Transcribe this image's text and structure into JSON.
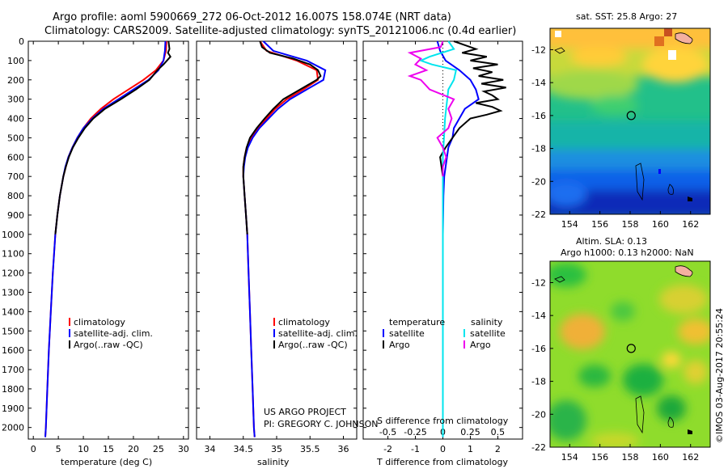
{
  "header": {
    "line1": "Argo profile: aoml 5900669_272 06-Oct-2012 16.007S 158.074E (NRT data)",
    "line2": "Climatology: CARS2009. Satellite-adjusted climatology: synTS_20121006.nc (0.4d earlier)"
  },
  "footer": {
    "project": "US ARGO PROJECT",
    "pi": "PI: GREGORY C. JOHNSON",
    "timestamp": "©IMOS 03-Aug-2017 20:55:24"
  },
  "colors": {
    "climatology": "#ff0000",
    "satellite": "#0000ff",
    "argo": "#000000",
    "salinity_satellite": "#00e5ee",
    "salinity_argo": "#ee00ee"
  },
  "chart_data": [
    {
      "type": "line",
      "name": "temperature-profile",
      "xlabel": "temperature (deg C)",
      "ylabel": "",
      "xlim": [
        -1,
        31
      ],
      "ylim": [
        2060,
        0
      ],
      "xticks": [
        0,
        5,
        10,
        15,
        20,
        25,
        30
      ],
      "yticks": [
        0,
        100,
        200,
        300,
        400,
        500,
        600,
        700,
        800,
        900,
        1000,
        1100,
        1200,
        1300,
        1400,
        1500,
        1600,
        1700,
        1800,
        1900,
        2000
      ],
      "legend": [
        "climatology",
        "satellite-adj. clim.",
        "Argo(..raw -QC)"
      ],
      "legend_location": "lower-center",
      "series": [
        {
          "name": "climatology",
          "color": "#ff0000",
          "depth": [
            0,
            50,
            100,
            150,
            200,
            250,
            300,
            350,
            400,
            450,
            500,
            550,
            600,
            650,
            700,
            800,
            900,
            1000,
            1200,
            1400,
            1600,
            1800,
            2000,
            2050
          ],
          "values": [
            26.6,
            26.5,
            26.0,
            24.5,
            22.0,
            19.0,
            16.0,
            13.5,
            11.5,
            10.0,
            8.8,
            7.8,
            7.0,
            6.5,
            6.0,
            5.3,
            4.8,
            4.4,
            3.9,
            3.5,
            3.1,
            2.8,
            2.5,
            2.4
          ]
        },
        {
          "name": "satellite-adj. clim.",
          "color": "#0000ff",
          "depth": [
            0,
            50,
            100,
            150,
            200,
            250,
            300,
            350,
            400,
            450,
            500,
            550,
            600,
            650,
            700,
            800,
            900,
            1000,
            1200,
            1400,
            1600,
            1800,
            2000,
            2050
          ],
          "values": [
            26.4,
            26.3,
            26.0,
            25.0,
            23.0,
            20.0,
            17.0,
            14.0,
            11.8,
            10.0,
            8.8,
            7.8,
            7.0,
            6.4,
            6.0,
            5.3,
            4.8,
            4.4,
            3.9,
            3.5,
            3.1,
            2.8,
            2.5,
            2.4
          ]
        },
        {
          "name": "Argo(..raw -QC)",
          "color": "#000000",
          "depth": [
            0,
            20,
            40,
            60,
            80,
            100,
            120,
            150,
            200,
            250,
            300,
            350,
            400,
            450,
            500,
            550,
            600,
            650,
            700,
            800,
            900,
            1000
          ],
          "values": [
            27.0,
            27.1,
            27.2,
            26.9,
            27.4,
            26.7,
            26.0,
            24.8,
            23.2,
            20.5,
            17.5,
            14.3,
            12.0,
            10.3,
            9.0,
            7.9,
            7.1,
            6.5,
            6.0,
            5.3,
            4.8,
            4.4
          ]
        }
      ]
    },
    {
      "type": "line",
      "name": "salinity-profile",
      "xlabel": "salinity",
      "xlim": [
        33.8,
        36.2
      ],
      "ylim": [
        2060,
        0
      ],
      "xticks": [
        34,
        34.5,
        35,
        35.5,
        36
      ],
      "xticklabels": [
        "34",
        "34.5",
        "35",
        "35.5",
        "36"
      ],
      "legend": [
        "climatology",
        "satellite-adj. clim.",
        "Argo(..raw -QC)"
      ],
      "legend_location": "lower-center",
      "series": [
        {
          "name": "climatology",
          "color": "#ff0000",
          "depth": [
            0,
            50,
            100,
            150,
            200,
            250,
            300,
            350,
            400,
            450,
            500,
            550,
            600,
            650,
            700,
            800,
            900,
            1000,
            1200,
            1400,
            1600,
            1800,
            2000,
            2050
          ],
          "values": [
            34.75,
            34.85,
            35.3,
            35.6,
            35.62,
            35.4,
            35.15,
            34.98,
            34.85,
            34.72,
            34.62,
            34.55,
            34.52,
            34.5,
            34.5,
            34.52,
            34.54,
            34.56,
            34.58,
            34.6,
            34.62,
            34.64,
            34.66,
            34.67
          ]
        },
        {
          "name": "satellite-adj. clim.",
          "color": "#0000ff",
          "depth": [
            0,
            50,
            100,
            150,
            200,
            250,
            300,
            350,
            400,
            450,
            500,
            550,
            600,
            650,
            700,
            800,
            900,
            1000,
            1200,
            1400,
            1600,
            1800,
            2000,
            2050
          ],
          "values": [
            34.8,
            34.95,
            35.45,
            35.73,
            35.7,
            35.45,
            35.2,
            35.02,
            34.88,
            34.74,
            34.64,
            34.57,
            34.53,
            34.51,
            34.5,
            34.52,
            34.54,
            34.56,
            34.58,
            34.6,
            34.62,
            34.64,
            34.66,
            34.67
          ]
        },
        {
          "name": "Argo(..raw -QC)",
          "color": "#000000",
          "depth": [
            0,
            30,
            60,
            90,
            120,
            150,
            180,
            200,
            250,
            300,
            350,
            400,
            450,
            500,
            550,
            600,
            650,
            700,
            800,
            900,
            1000
          ],
          "values": [
            34.75,
            34.78,
            34.9,
            35.25,
            35.5,
            35.62,
            35.66,
            35.6,
            35.35,
            35.1,
            34.95,
            34.82,
            34.7,
            34.6,
            34.55,
            34.52,
            34.5,
            34.5,
            34.52,
            34.54,
            34.56
          ]
        }
      ]
    },
    {
      "type": "line",
      "name": "difference-profile",
      "xlabel": "T difference from climatology",
      "xlabel2": "S difference from climatology",
      "xlim": [
        -2.9,
        2.9
      ],
      "ylim": [
        2060,
        0
      ],
      "xticks": [
        -2,
        -1,
        0,
        1,
        2
      ],
      "xticklabels": [
        "-2",
        "-1",
        "0",
        "1",
        "2"
      ],
      "sticks": [
        -0.5,
        -0.25,
        0,
        0.25,
        0.5
      ],
      "sticklabels": [
        "-0.5",
        "-0.25",
        "0",
        "0.25",
        "0.5"
      ],
      "legend_headers": [
        "temperature",
        "salinity"
      ],
      "legend": [
        "satellite",
        "Argo",
        "satellite",
        "Argo"
      ],
      "legend_location": "lower-center",
      "series": [
        {
          "name": "T satellite",
          "color": "#0000ff",
          "unit": "T",
          "depth": [
            0,
            50,
            100,
            150,
            200,
            250,
            300,
            350,
            400,
            450,
            500,
            550,
            600,
            650,
            700,
            800,
            1000,
            1500,
            2050
          ],
          "values": [
            -0.2,
            -0.1,
            0.1,
            0.6,
            1.0,
            1.2,
            1.3,
            0.8,
            0.6,
            0.4,
            0.35,
            0.2,
            0.15,
            0.1,
            0.05,
            0.02,
            0.0,
            0.0,
            0.0
          ]
        },
        {
          "name": "T Argo",
          "color": "#000000",
          "unit": "T",
          "depth": [
            0,
            20,
            40,
            60,
            80,
            100,
            120,
            140,
            160,
            180,
            200,
            220,
            240,
            260,
            280,
            300,
            320,
            340,
            360,
            380,
            400,
            450,
            500,
            550,
            600,
            650,
            700
          ],
          "values": [
            0.4,
            0.8,
            1.2,
            0.7,
            1.6,
            1.0,
            2.0,
            1.1,
            1.8,
            1.3,
            2.2,
            1.4,
            2.3,
            1.5,
            1.8,
            2.0,
            1.2,
            1.8,
            2.1,
            1.6,
            1.0,
            0.6,
            0.35,
            0.1,
            -0.1,
            -0.05,
            0.0
          ]
        },
        {
          "name": "S satellite",
          "color": "#00e5ee",
          "unit": "S",
          "depth": [
            0,
            40,
            80,
            100,
            120,
            150,
            200,
            250,
            300,
            400,
            500,
            600,
            700,
            800,
            1000,
            1500,
            2050
          ],
          "values": [
            0.05,
            0.1,
            -0.12,
            -0.2,
            -0.1,
            0.12,
            0.1,
            0.05,
            0.04,
            0.02,
            0.01,
            0.0,
            0.0,
            0.0,
            0.0,
            0.0,
            0.0
          ]
        },
        {
          "name": "S Argo",
          "color": "#ee00ee",
          "unit": "S",
          "depth": [
            0,
            30,
            60,
            90,
            120,
            150,
            180,
            200,
            250,
            300,
            350,
            400,
            450,
            500,
            550,
            600,
            650,
            700
          ],
          "values": [
            0.0,
            -0.02,
            -0.3,
            -0.2,
            -0.25,
            -0.15,
            -0.3,
            -0.2,
            -0.12,
            0.1,
            0.05,
            0.08,
            0.05,
            -0.05,
            0.0,
            0.03,
            0.0,
            0.0
          ]
        }
      ]
    },
    {
      "type": "heatmap",
      "name": "sst-map",
      "title": "sat. SST: 25.8  Argo: 27",
      "xticks": [
        154,
        156,
        158,
        160,
        162
      ],
      "yticks": [
        -12,
        -14,
        -16,
        -18,
        -20,
        -22
      ],
      "xlim": [
        152.7,
        163.3
      ],
      "ylim": [
        -22,
        -10.7
      ],
      "marker": {
        "lon": 158.07,
        "lat": -16.0
      }
    },
    {
      "type": "heatmap",
      "name": "sla-map",
      "title1": "Altim. SLA: 0.13",
      "title2": "Argo h1000: 0.13  h2000: NaN",
      "xticks": [
        154,
        156,
        158,
        160,
        162
      ],
      "yticks": [
        -12,
        -14,
        -16,
        -18,
        -20,
        -22
      ],
      "xlim": [
        152.7,
        163.3
      ],
      "ylim": [
        -22,
        -10.7
      ],
      "marker": {
        "lon": 158.07,
        "lat": -16.0
      }
    }
  ]
}
